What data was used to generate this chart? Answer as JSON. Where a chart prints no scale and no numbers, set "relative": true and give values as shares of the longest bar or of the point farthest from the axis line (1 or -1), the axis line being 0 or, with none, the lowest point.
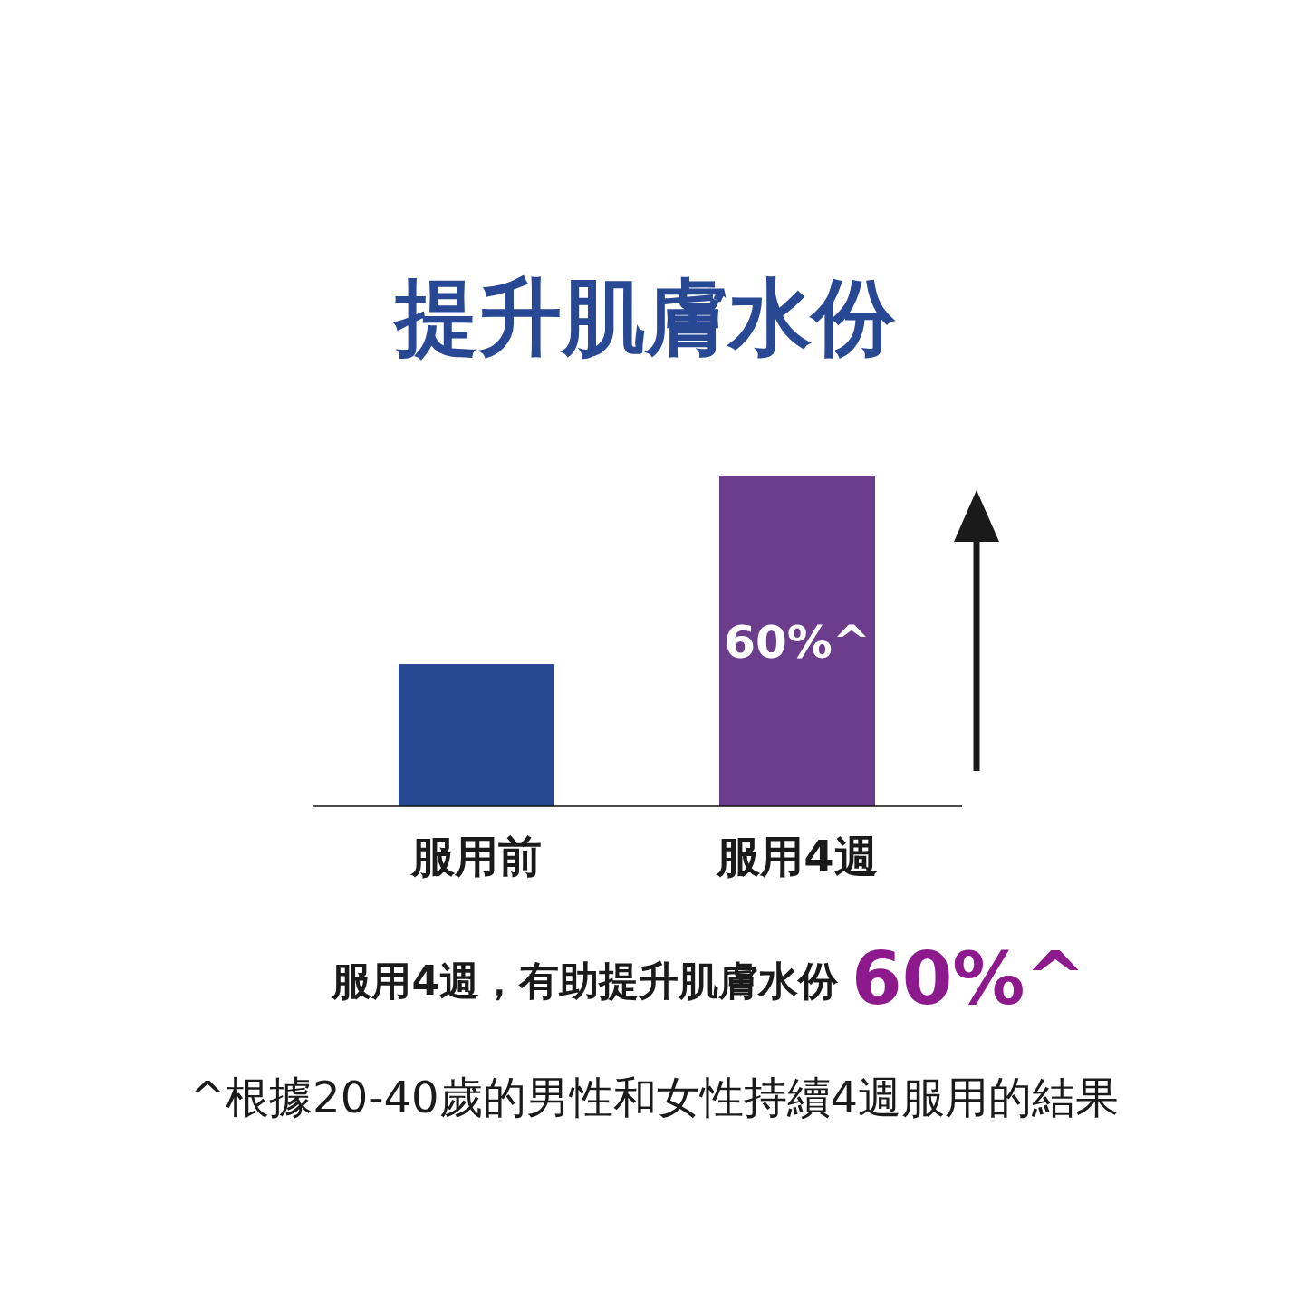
{
  "chart_data": {
    "type": "bar",
    "relative": true,
    "title": "提升肌膚水份",
    "categories": [
      "服用前",
      "服用4週"
    ],
    "values": [
      0.43,
      1
    ],
    "colors": [
      "#284894",
      "#6b3d8c"
    ],
    "annotations": [
      "60%^",
      "服用4週，有助提升肌膚水份",
      "60%^",
      "^根據20-40歲的男性和女性持續4週服用的結果"
    ]
  }
}
